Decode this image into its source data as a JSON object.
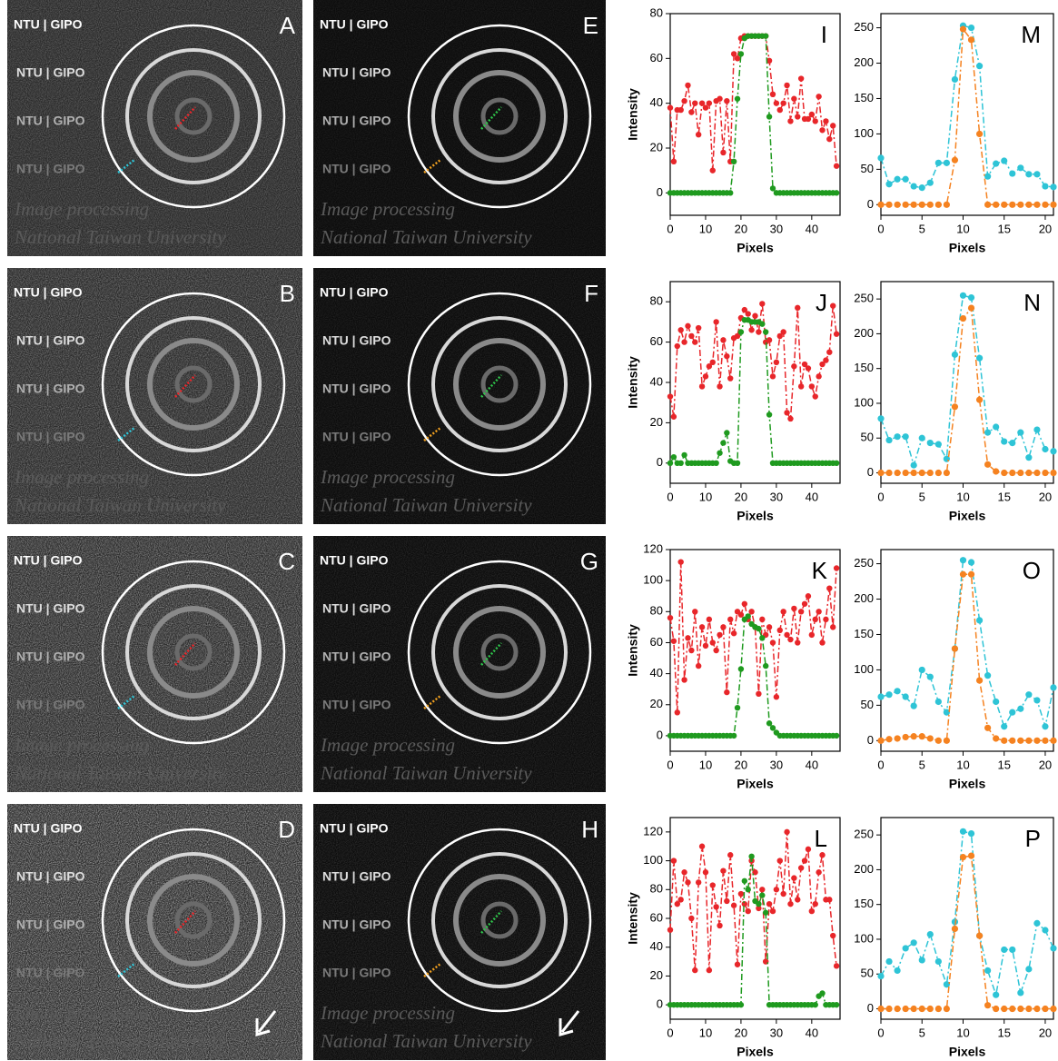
{
  "images": [
    {
      "label": "A",
      "lines": [
        "NTU | GIPO",
        "NTU | GIPO",
        "NTU | GIPO",
        "NTU | GIPO"
      ],
      "script": [
        "Image processing",
        "National Taiwan University"
      ],
      "probes": [
        "#e8262a",
        "#2ec4d6"
      ],
      "arrow": false
    },
    {
      "label": "B",
      "lines": [
        "NTU | GIPO",
        "NTU | GIPO",
        "NTU | GIPO",
        "NTU | GIPO"
      ],
      "script": [
        "Image processing",
        "National Taiwan University"
      ],
      "probes": [
        "#e8262a",
        "#2ec4d6"
      ],
      "arrow": false
    },
    {
      "label": "C",
      "lines": [
        "NTU | GIPO",
        "NTU | GIPO",
        "NTU | GIPO",
        "NTU | GIPO"
      ],
      "script": [
        "Image processing",
        "National Taiwan University"
      ],
      "probes": [
        "#e8262a",
        "#2ec4d6"
      ],
      "arrow": false
    },
    {
      "label": "D",
      "lines": [
        "NTU | GIPO",
        "NTU | GIPO",
        "NTU | GIPO",
        "NTU | GIPO"
      ],
      "script": [
        "Image processing",
        "National Taiwan University"
      ],
      "probes": [
        "#e8262a",
        "#2ec4d6"
      ],
      "arrow": true
    },
    {
      "label": "E",
      "lines": [
        "NTU | GIPO",
        "NTU | GIPO",
        "NTU | GIPO",
        "NTU | GIPO"
      ],
      "script": [
        "Image processing",
        "National Taiwan University"
      ],
      "probes": [
        "#2ec44a",
        "#f0a020"
      ],
      "arrow": false
    },
    {
      "label": "F",
      "lines": [
        "NTU | GIPO",
        "NTU | GIPO",
        "NTU | GIPO",
        "NTU | GIPO"
      ],
      "script": [
        "Image processing",
        "National Taiwan University"
      ],
      "probes": [
        "#2ec44a",
        "#f0a020"
      ],
      "arrow": false
    },
    {
      "label": "G",
      "lines": [
        "NTU | GIPO",
        "NTU | GIPO",
        "NTU | GIPO",
        "NTU | GIPO"
      ],
      "script": [
        "Image processing",
        "National Taiwan University"
      ],
      "probes": [
        "#2ec44a",
        "#f0a020"
      ],
      "arrow": false
    },
    {
      "label": "H",
      "lines": [
        "NTU | GIPO",
        "NTU | GIPO",
        "NTU | GIPO",
        "NTU | GIPO"
      ],
      "script": [
        "Image processing",
        "National Taiwan University"
      ],
      "probes": [
        "#2ec44a",
        "#f0a020"
      ],
      "arrow": true
    }
  ],
  "chart_data": [
    {
      "type": "line",
      "label": "I",
      "ylabel": "Intensity",
      "xlabel": "Pixels",
      "linestyle": "dash-dot",
      "x": [
        0,
        1,
        2,
        3,
        4,
        5,
        6,
        7,
        8,
        9,
        10,
        11,
        12,
        13,
        14,
        15,
        16,
        17,
        18,
        19,
        20,
        21,
        22,
        23,
        24,
        25,
        26,
        27,
        28,
        29,
        30,
        31,
        32,
        33,
        34,
        35,
        36,
        37,
        38,
        39,
        40,
        41,
        42,
        43,
        44,
        45,
        46,
        47
      ],
      "xlim": [
        0,
        48
      ],
      "xticks": [
        0,
        10,
        20,
        30,
        40
      ],
      "ylim": [
        -10,
        80
      ],
      "yticks": [
        0,
        20,
        40,
        60,
        80
      ],
      "series": [
        {
          "color": "#e8262a",
          "values": [
            38,
            14,
            37,
            37,
            41,
            48,
            36,
            40,
            26,
            40,
            38,
            40,
            10,
            41,
            42,
            18,
            41,
            14,
            62,
            60,
            69,
            70,
            70,
            70,
            70,
            70,
            70,
            70,
            59,
            44,
            40,
            37,
            40,
            48,
            32,
            42,
            34,
            51,
            33,
            33,
            35,
            32,
            43,
            28,
            32,
            24,
            30,
            12
          ]
        },
        {
          "color": "#1f9a1f",
          "values": [
            0,
            0,
            0,
            0,
            0,
            0,
            0,
            0,
            0,
            0,
            0,
            0,
            0,
            0,
            0,
            0,
            0,
            0,
            14,
            42,
            62,
            69,
            70,
            70,
            70,
            70,
            70,
            70,
            34,
            2,
            0,
            0,
            0,
            0,
            0,
            0,
            0,
            0,
            0,
            0,
            0,
            0,
            0,
            0,
            0,
            0,
            0,
            0
          ]
        }
      ]
    },
    {
      "type": "line",
      "label": "J",
      "ylabel": "Intensity",
      "xlabel": "Pixels",
      "linestyle": "dash-dot",
      "x": [
        0,
        1,
        2,
        3,
        4,
        5,
        6,
        7,
        8,
        9,
        10,
        11,
        12,
        13,
        14,
        15,
        16,
        17,
        18,
        19,
        20,
        21,
        22,
        23,
        24,
        25,
        26,
        27,
        28,
        29,
        30,
        31,
        32,
        33,
        34,
        35,
        36,
        37,
        38,
        39,
        40,
        41,
        42,
        43,
        44,
        45,
        46,
        47
      ],
      "xlim": [
        0,
        48
      ],
      "xticks": [
        0,
        10,
        20,
        30,
        40
      ],
      "ylim": [
        -10,
        90
      ],
      "yticks": [
        0,
        20,
        40,
        60,
        80
      ],
      "series": [
        {
          "color": "#e8262a",
          "values": [
            33,
            23,
            58,
            66,
            60,
            68,
            63,
            60,
            67,
            38,
            43,
            48,
            50,
            70,
            38,
            61,
            53,
            42,
            62,
            63,
            72,
            76,
            74,
            66,
            73,
            65,
            79,
            60,
            61,
            43,
            50,
            63,
            65,
            25,
            22,
            48,
            77,
            38,
            49,
            47,
            38,
            33,
            43,
            49,
            51,
            55,
            78,
            64
          ]
        },
        {
          "color": "#1f9a1f",
          "values": [
            0,
            3,
            0,
            0,
            4,
            0,
            0,
            0,
            0,
            0,
            0,
            0,
            0,
            0,
            5,
            10,
            15,
            1,
            0,
            0,
            65,
            71,
            71,
            70,
            70,
            70,
            69,
            65,
            24,
            0,
            0,
            0,
            0,
            0,
            0,
            0,
            0,
            0,
            0,
            0,
            0,
            0,
            0,
            0,
            0,
            0,
            0,
            0
          ]
        }
      ]
    },
    {
      "type": "line",
      "label": "K",
      "ylabel": "Intensity",
      "xlabel": "Pixels",
      "linestyle": "dash-dot",
      "x": [
        0,
        1,
        2,
        3,
        4,
        5,
        6,
        7,
        8,
        9,
        10,
        11,
        12,
        13,
        14,
        15,
        16,
        17,
        18,
        19,
        20,
        21,
        22,
        23,
        24,
        25,
        26,
        27,
        28,
        29,
        30,
        31,
        32,
        33,
        34,
        35,
        36,
        37,
        38,
        39,
        40,
        41,
        42,
        43,
        44,
        45,
        46,
        47
      ],
      "xlim": [
        0,
        48
      ],
      "xticks": [
        0,
        10,
        20,
        30,
        40
      ],
      "ylim": [
        -10,
        120
      ],
      "yticks": [
        0,
        20,
        40,
        60,
        80,
        100,
        120
      ],
      "series": [
        {
          "color": "#e8262a",
          "values": [
            76,
            61,
            15,
            112,
            36,
            63,
            55,
            80,
            45,
            70,
            58,
            75,
            60,
            55,
            65,
            70,
            28,
            75,
            66,
            80,
            78,
            85,
            75,
            80,
            70,
            27,
            75,
            65,
            70,
            60,
            25,
            68,
            80,
            65,
            62,
            82,
            60,
            80,
            85,
            90,
            65,
            75,
            80,
            60,
            75,
            95,
            70,
            108
          ]
        },
        {
          "color": "#1f9a1f",
          "values": [
            0,
            0,
            0,
            0,
            0,
            0,
            0,
            0,
            0,
            0,
            0,
            0,
            0,
            0,
            0,
            0,
            0,
            0,
            0,
            18,
            43,
            75,
            77,
            72,
            70,
            69,
            63,
            45,
            8,
            5,
            2,
            0,
            0,
            0,
            0,
            0,
            0,
            0,
            0,
            0,
            0,
            0,
            0,
            0,
            0,
            0,
            0,
            0
          ]
        }
      ]
    },
    {
      "type": "line",
      "label": "L",
      "ylabel": "Intensity",
      "xlabel": "Pixels",
      "linestyle": "dash-dot",
      "x": [
        0,
        1,
        2,
        3,
        4,
        5,
        6,
        7,
        8,
        9,
        10,
        11,
        12,
        13,
        14,
        15,
        16,
        17,
        18,
        19,
        20,
        21,
        22,
        23,
        24,
        25,
        26,
        27,
        28,
        29,
        30,
        31,
        32,
        33,
        34,
        35,
        36,
        37,
        38,
        39,
        40,
        41,
        42,
        43,
        44,
        45,
        46,
        47
      ],
      "xlim": [
        0,
        48
      ],
      "xticks": [
        0,
        10,
        20,
        30,
        40
      ],
      "ylim": [
        -10,
        130
      ],
      "yticks": [
        0,
        20,
        40,
        60,
        80,
        100,
        120
      ],
      "series": [
        {
          "color": "#e8262a",
          "values": [
            52,
            100,
            70,
            73,
            92,
            85,
            60,
            24,
            85,
            110,
            92,
            24,
            83,
            68,
            55,
            93,
            72,
            104,
            69,
            28,
            77,
            70,
            65,
            100,
            92,
            67,
            80,
            30,
            70,
            65,
            80,
            100,
            77,
            120,
            70,
            88,
            73,
            95,
            100,
            108,
            65,
            70,
            92,
            104,
            73,
            73,
            48,
            27
          ]
        },
        {
          "color": "#1f9a1f",
          "values": [
            0,
            0,
            0,
            0,
            0,
            0,
            0,
            0,
            0,
            0,
            0,
            0,
            0,
            0,
            0,
            0,
            0,
            0,
            0,
            0,
            0,
            86,
            80,
            103,
            72,
            70,
            76,
            64,
            0,
            0,
            0,
            0,
            0,
            0,
            0,
            0,
            0,
            0,
            0,
            0,
            0,
            0,
            6,
            8,
            0,
            0,
            0,
            0
          ]
        }
      ]
    },
    {
      "type": "line",
      "label": "M",
      "xlabel": "Pixels",
      "linestyle": "dash-dot",
      "x": [
        0,
        1,
        2,
        3,
        4,
        5,
        6,
        7,
        8,
        9,
        10,
        11,
        12,
        13,
        14,
        15,
        16,
        17,
        18,
        19,
        20,
        21
      ],
      "xlim": [
        0,
        21
      ],
      "xticks": [
        0,
        5,
        10,
        15,
        20
      ],
      "ylim": [
        -15,
        270
      ],
      "yticks": [
        0,
        50,
        100,
        150,
        200,
        250
      ],
      "series": [
        {
          "color": "#2ec4d6",
          "values": [
            66,
            29,
            36,
            36,
            26,
            24,
            31,
            59,
            59,
            177,
            253,
            250,
            196,
            40,
            58,
            62,
            44,
            52,
            43,
            43,
            26,
            25
          ]
        },
        {
          "color": "#f58220",
          "values": [
            0,
            0,
            0,
            0,
            0,
            0,
            0,
            0,
            0,
            63,
            248,
            233,
            100,
            0,
            0,
            0,
            0,
            0,
            0,
            0,
            0,
            0
          ]
        }
      ]
    },
    {
      "type": "line",
      "label": "N",
      "xlabel": "Pixels",
      "linestyle": "dash-dot",
      "x": [
        0,
        1,
        2,
        3,
        4,
        5,
        6,
        7,
        8,
        9,
        10,
        11,
        12,
        13,
        14,
        15,
        16,
        17,
        18,
        19,
        20,
        21
      ],
      "xlim": [
        0,
        21
      ],
      "xticks": [
        0,
        5,
        10,
        15,
        20
      ],
      "ylim": [
        -15,
        275
      ],
      "yticks": [
        0,
        50,
        100,
        150,
        200,
        250
      ],
      "series": [
        {
          "color": "#2ec4d6",
          "values": [
            78,
            47,
            52,
            52,
            11,
            50,
            43,
            41,
            20,
            170,
            255,
            252,
            165,
            58,
            66,
            45,
            43,
            58,
            22,
            62,
            34,
            31
          ]
        },
        {
          "color": "#f58220",
          "values": [
            0,
            0,
            0,
            0,
            0,
            0,
            0,
            0,
            0,
            95,
            222,
            237,
            105,
            12,
            2,
            0,
            0,
            0,
            0,
            0,
            0,
            0
          ]
        }
      ]
    },
    {
      "type": "line",
      "label": "O",
      "xlabel": "Pixels",
      "linestyle": "dash-dot",
      "x": [
        0,
        1,
        2,
        3,
        4,
        5,
        6,
        7,
        8,
        9,
        10,
        11,
        12,
        13,
        14,
        15,
        16,
        17,
        18,
        19,
        20,
        21
      ],
      "xlim": [
        0,
        21
      ],
      "xticks": [
        0,
        5,
        10,
        15,
        20
      ],
      "ylim": [
        -15,
        270
      ],
      "yticks": [
        0,
        50,
        100,
        150,
        200,
        250
      ],
      "series": [
        {
          "color": "#2ec4d6",
          "values": [
            62,
            65,
            70,
            62,
            49,
            100,
            90,
            55,
            40,
            130,
            255,
            252,
            170,
            92,
            55,
            20,
            40,
            45,
            65,
            57,
            20,
            75
          ]
        },
        {
          "color": "#f58220",
          "values": [
            0,
            2,
            3,
            5,
            6,
            6,
            3,
            0,
            0,
            130,
            235,
            235,
            85,
            18,
            3,
            0,
            0,
            0,
            0,
            0,
            0,
            0
          ]
        }
      ]
    },
    {
      "type": "line",
      "label": "P",
      "xlabel": "Pixels",
      "linestyle": "dash-dot",
      "x": [
        0,
        1,
        2,
        3,
        4,
        5,
        6,
        7,
        8,
        9,
        10,
        11,
        12,
        13,
        14,
        15,
        16,
        17,
        18,
        19,
        20,
        21
      ],
      "xlim": [
        0,
        21
      ],
      "xticks": [
        0,
        5,
        10,
        15,
        20
      ],
      "ylim": [
        -15,
        275
      ],
      "yticks": [
        0,
        50,
        100,
        150,
        200,
        250
      ],
      "series": [
        {
          "color": "#2ec4d6",
          "values": [
            47,
            68,
            55,
            87,
            95,
            70,
            107,
            68,
            35,
            125,
            255,
            252,
            105,
            55,
            20,
            85,
            85,
            23,
            57,
            123,
            113,
            87
          ]
        },
        {
          "color": "#f58220",
          "values": [
            0,
            0,
            0,
            0,
            0,
            0,
            0,
            0,
            0,
            115,
            218,
            220,
            105,
            5,
            0,
            0,
            0,
            0,
            0,
            0,
            0,
            0
          ]
        }
      ]
    }
  ]
}
